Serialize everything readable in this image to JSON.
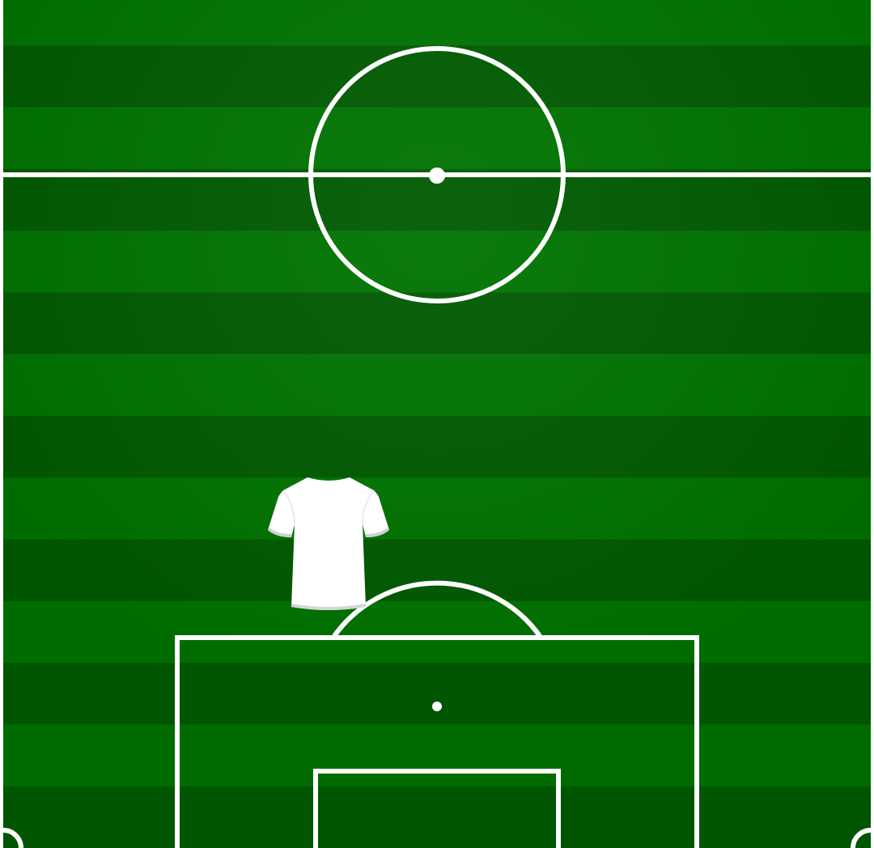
{
  "pitch": {
    "colors": {
      "stripe_light": "#007300",
      "stripe_dark": "#005a00",
      "line": "#ffffff",
      "border": "#ffffff"
    },
    "stripe_count": 14
  },
  "player": {
    "icon": "shirt-icon",
    "shirt_color": "#ffffff",
    "collar_color": "#cfcfcf",
    "number": "",
    "name": ""
  }
}
